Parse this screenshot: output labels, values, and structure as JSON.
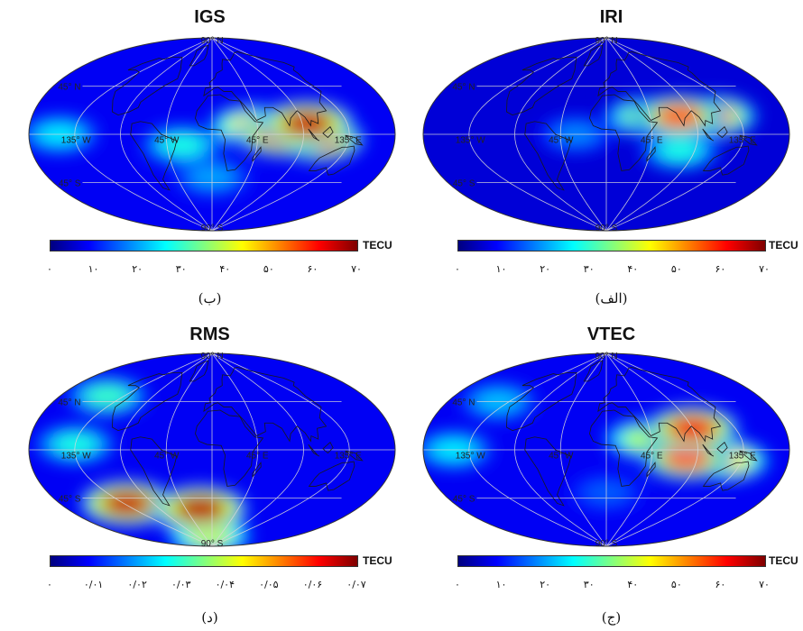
{
  "colorbar": {
    "colors": [
      "#00007f",
      "#0000ff",
      "#0080ff",
      "#00ffff",
      "#80ff80",
      "#ffff00",
      "#ff8000",
      "#ff0000",
      "#7f0000"
    ]
  },
  "map_labels": {
    "lat_n": "45° N",
    "lat_0": "0°",
    "lat_s": "45° S",
    "lat_np": "90° N",
    "lat_sp": "90° S",
    "lon_w135": "135° W",
    "lon_w45": "45° W",
    "lon_e45": "45° E",
    "lon_e135": "135° E"
  },
  "chart_data": [
    {
      "type": "heatmap",
      "title": "IGS",
      "unit": "TECU",
      "caption": "(ب)",
      "colorbar_range": [
        0,
        70
      ],
      "ticks": [
        "۰",
        "۱۰",
        "۲۰",
        "۳۰",
        "۴۰",
        "۵۰",
        "۶۰",
        "۷۰"
      ],
      "features": [
        {
          "lon": 70,
          "lat": 0,
          "value": 62
        },
        {
          "lon": 95,
          "lat": 10,
          "value": 65
        },
        {
          "lon": 105,
          "lat": -5,
          "value": 60
        },
        {
          "lon": 40,
          "lat": 8,
          "value": 45
        },
        {
          "lon": -30,
          "lat": -10,
          "value": 28
        },
        {
          "lon": -150,
          "lat": 0,
          "value": 25
        },
        {
          "lon": 0,
          "lat": -40,
          "value": 20
        }
      ],
      "background_value": 8
    },
    {
      "type": "heatmap",
      "title": "IRI",
      "unit": "TECU",
      "caption": "(الف)",
      "colorbar_range": [
        0,
        70
      ],
      "ticks": [
        "۰",
        "۱۰",
        "۲۰",
        "۳۰",
        "۴۰",
        "۵۰",
        "۶۰",
        "۷۰"
      ],
      "features": [
        {
          "lon": 75,
          "lat": 17,
          "value": 55
        },
        {
          "lon": 110,
          "lat": 17,
          "value": 50
        },
        {
          "lon": 40,
          "lat": 17,
          "value": 35
        },
        {
          "lon": 75,
          "lat": -15,
          "value": 28
        },
        {
          "lon": -30,
          "lat": 0,
          "value": 18
        }
      ],
      "background_value": 6
    },
    {
      "type": "heatmap",
      "title": "RMS",
      "unit": "TECU",
      "caption": "(د)",
      "colorbar_range": [
        0,
        0.07
      ],
      "ticks": [
        "۰",
        "۰/۰۱",
        "۰/۰۲",
        "۰/۰۳",
        "۰/۰۴",
        "۰/۰۵",
        "۰/۰۶",
        "۰/۰۷"
      ],
      "features": [
        {
          "lon": -130,
          "lat": -50,
          "value": 0.065
        },
        {
          "lon": -20,
          "lat": -55,
          "value": 0.066
        },
        {
          "lon": -160,
          "lat": 50,
          "value": 0.03
        },
        {
          "lon": -135,
          "lat": 5,
          "value": 0.028
        },
        {
          "lon": -40,
          "lat": -60,
          "value": 0.025
        },
        {
          "lon": -15,
          "lat": -80,
          "value": 0.04
        }
      ],
      "background_value": 0.008
    },
    {
      "type": "heatmap",
      "title": "VTEC",
      "unit": "TECU",
      "caption": "(ج)",
      "colorbar_range": [
        0,
        70
      ],
      "ticks": [
        "۰",
        "۱۰",
        "۲۰",
        "۳۰",
        "۴۰",
        "۵۰",
        "۶۰",
        "۷۰"
      ],
      "features": [
        {
          "lon": 90,
          "lat": 20,
          "value": 62
        },
        {
          "lon": 80,
          "lat": -8,
          "value": 55
        },
        {
          "lon": 120,
          "lat": -10,
          "value": 45
        },
        {
          "lon": 40,
          "lat": 10,
          "value": 38
        },
        {
          "lon": -150,
          "lat": 0,
          "value": 25
        },
        {
          "lon": -150,
          "lat": 45,
          "value": 22
        },
        {
          "lon": 0,
          "lat": -40,
          "value": 15
        }
      ],
      "background_value": 8
    }
  ]
}
